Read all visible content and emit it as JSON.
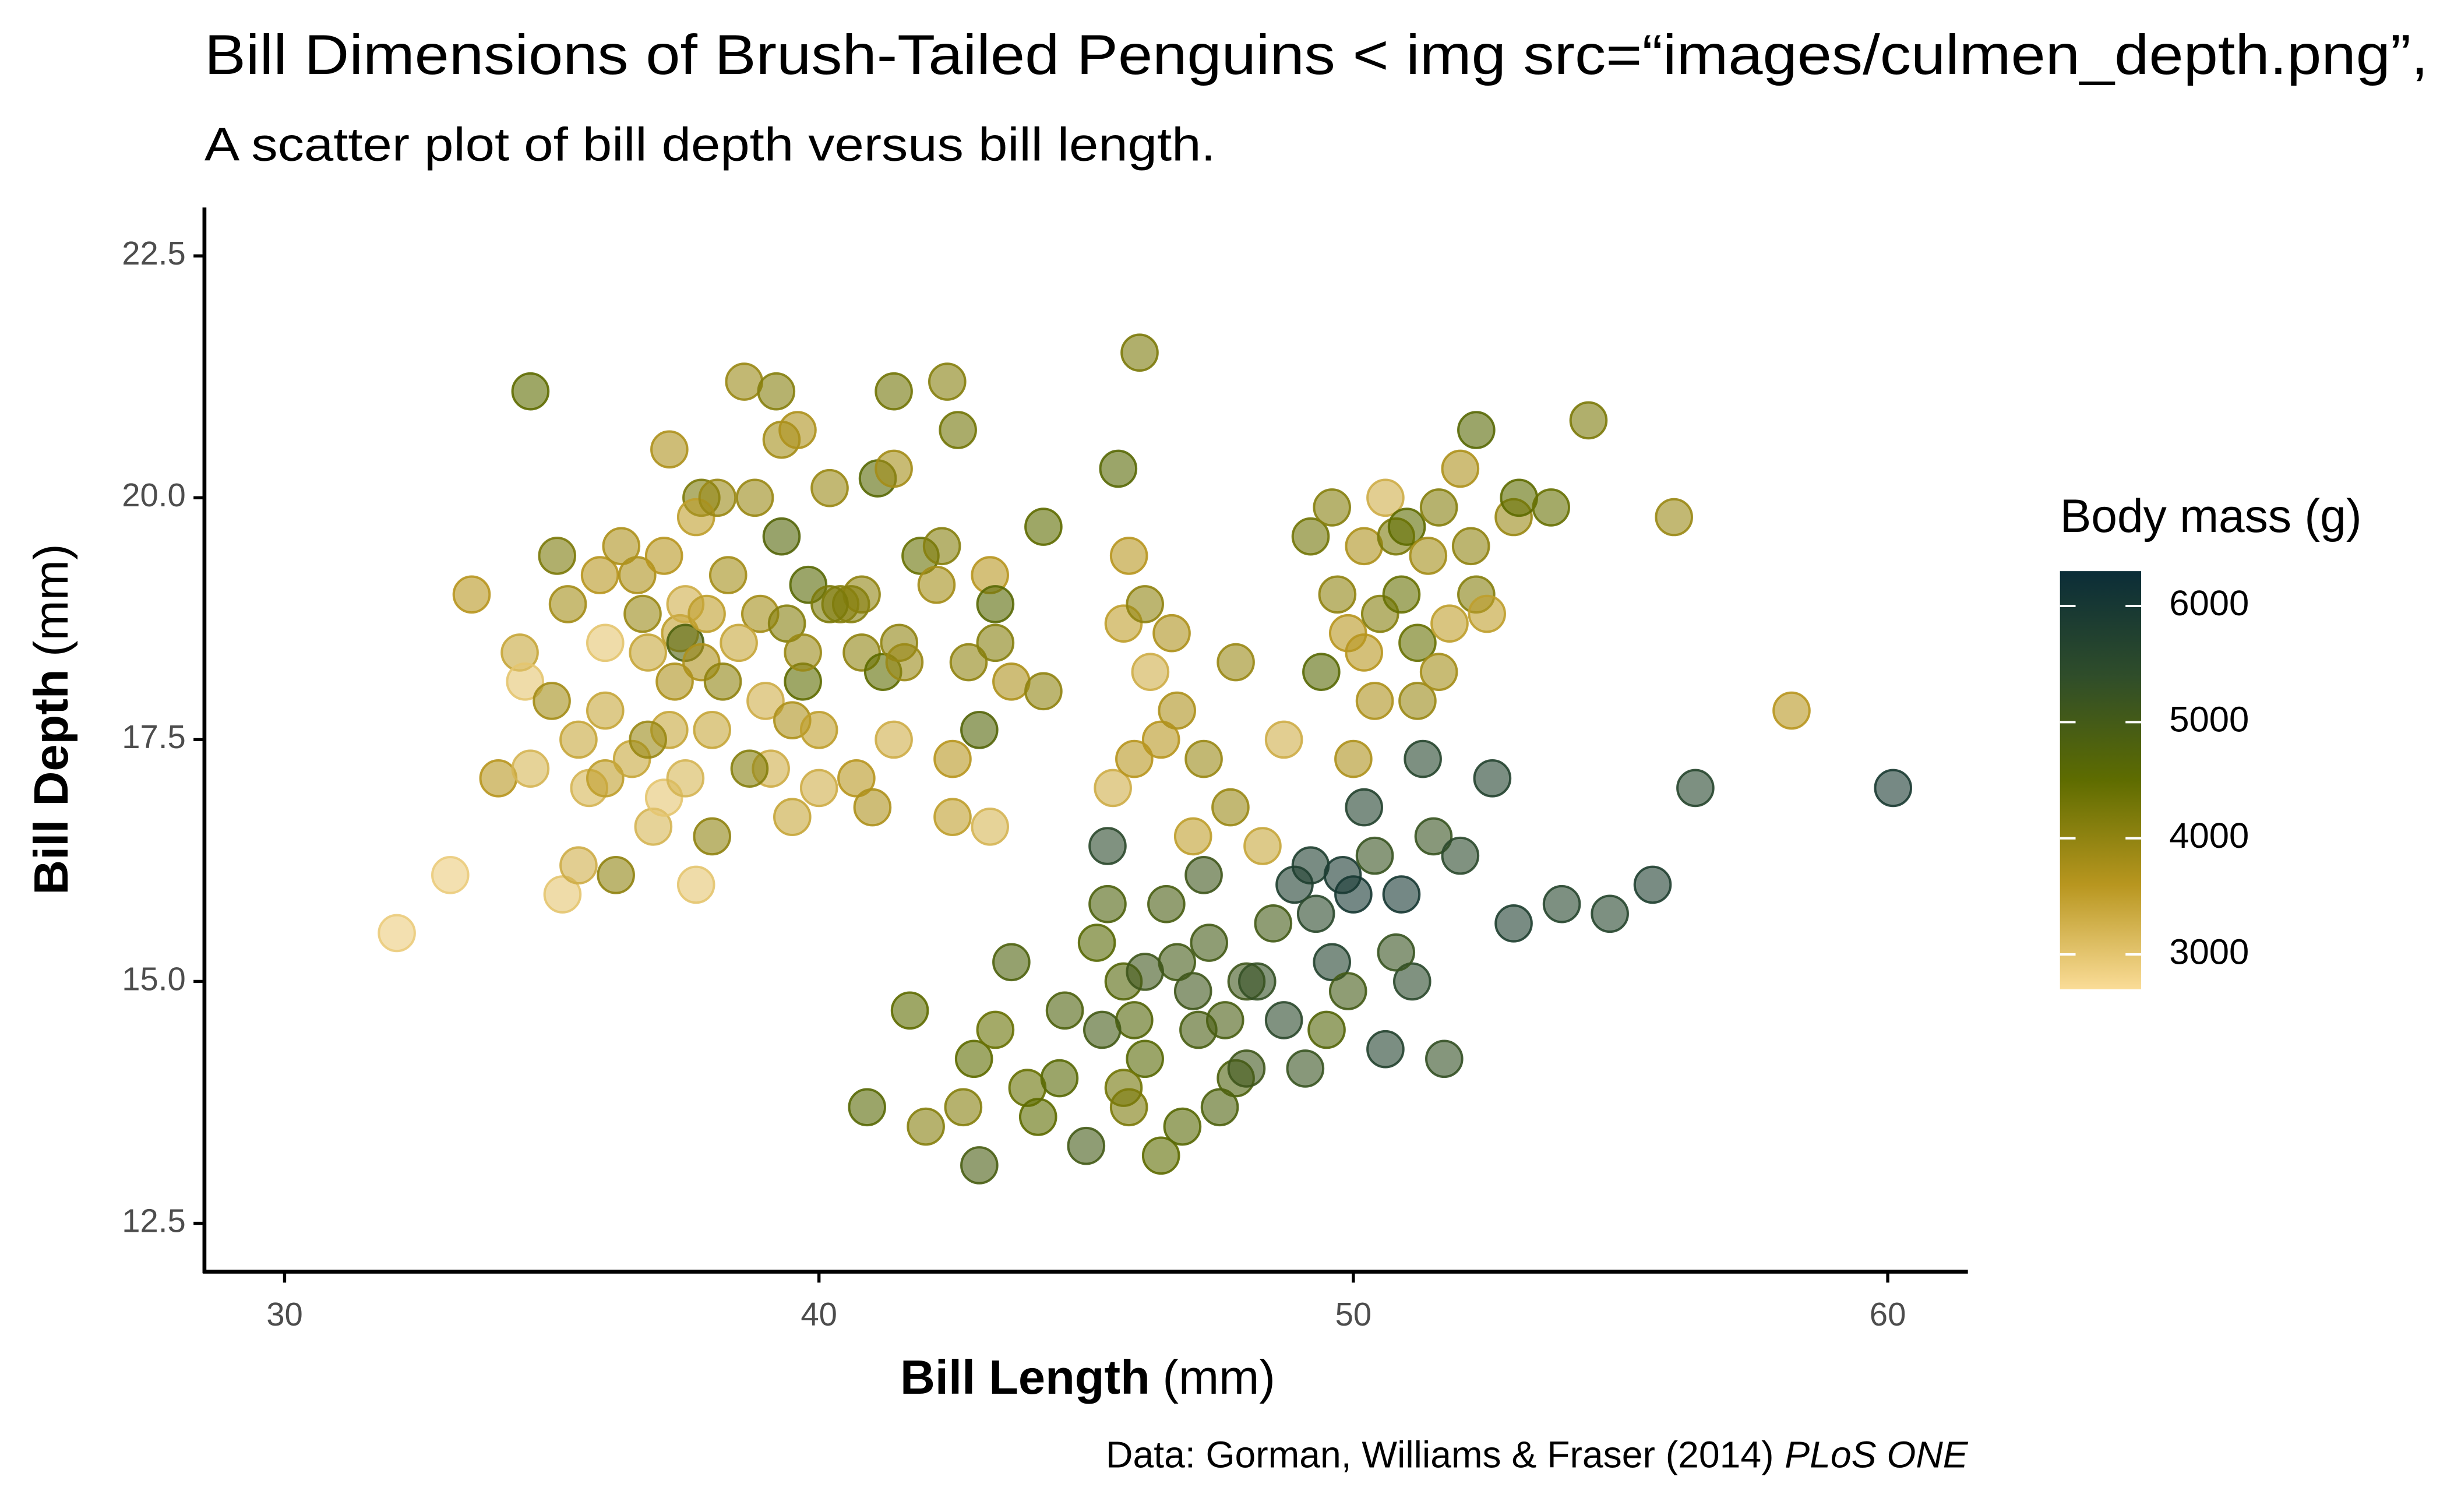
{
  "chart_data": {
    "type": "scatter",
    "title": "Bill Dimensions of Brush-Tailed Penguins < img src=“images/culmen_depth.png”,",
    "subtitle": "A scatter plot of bill depth versus bill length.",
    "x_label": "Bill Length",
    "x_label_unit": "(mm)",
    "y_label": "Bill Depth",
    "y_label_unit": "(mm)",
    "caption": "Data: Gorman, Williams & Fraser (2014)",
    "caption_italic": "PLoS ONE",
    "color_label": "Body mass (g)",
    "xlim": [
      28.5,
      61.5
    ],
    "xticks": [
      30,
      40,
      50,
      60
    ],
    "ylim": [
      12.0,
      23.0
    ],
    "yticks": [
      12.5,
      {
        "value": 15,
        "label": "15.0"
      },
      17.5,
      {
        "value": 20,
        "label": "20.0"
      },
      22.5
    ],
    "clim": [
      2700,
      6300
    ],
    "cticks": [
      3000,
      4000,
      5000,
      6000
    ],
    "colors": [
      "#fadc97",
      "#b8961f",
      "#5e6c00",
      "#2f4d2a",
      "#0b2d38"
    ],
    "x": [
      34.6,
      32.1,
      33.1,
      33.5,
      34.0,
      34.4,
      34.5,
      34.6,
      35.0,
      35.1,
      35.2,
      35.3,
      35.5,
      35.5,
      35.7,
      35.9,
      36.0,
      36.0,
      36.0,
      36.2,
      36.3,
      36.5,
      36.6,
      36.7,
      36.8,
      36.9,
      37.1,
      37.1,
      37.2,
      37.3,
      37.4,
      37.5,
      37.5,
      37.7,
      37.5,
      37.8,
      37.7,
      37.8,
      38.0,
      38.1,
      38.2,
      38.3,
      38.0,
      38.6,
      38.8,
      38.9,
      39.0,
      39.1,
      39.2,
      39.3,
      39.3,
      39.4,
      39.5,
      39.5,
      39.6,
      39.7,
      39.8,
      39.7,
      40.0,
      40.2,
      40.4,
      40.7,
      40.8,
      41.1,
      41.2,
      41.4,
      41.4,
      41.5,
      41.6,
      41.9,
      42.2,
      42.3,
      42.4,
      42.6,
      42.8,
      43.2,
      43.3,
      43.3,
      43.6,
      44.2,
      44.2,
      43.0,
      42.5,
      42.5,
      43.2,
      40.8,
      41.4,
      41.0,
      40.6,
      40.2,
      40.0,
      38.7,
      38.5,
      37.9,
      37.2,
      36.8,
      46.0,
      45.6,
      40.9,
      41.7,
      42.0,
      42.7,
      42.9,
      43.0,
      43.3,
      43.6,
      43.9,
      44.1,
      44.6,
      45.0,
      45.2,
      45.4,
      45.4,
      45.7,
      45.9,
      46.1,
      46.4,
      46.5,
      46.7,
      46.8,
      47.0,
      47.2,
      47.3,
      47.5,
      47.6,
      47.8,
      48.0,
      48.2,
      48.5,
      48.7,
      48.9,
      49.1,
      49.2,
      49.3,
      49.5,
      49.6,
      49.8,
      50.0,
      50.2,
      50.4,
      50.6,
      50.9,
      51.1,
      51.3,
      51.5,
      51.7,
      52.0,
      52.6,
      53.0,
      53.9,
      54.8,
      55.6,
      56.4,
      60.1,
      46.1,
      45.3,
      45.7,
      45.8,
      48.0,
      50.8,
      49.9,
      47.1,
      44.5,
      45.5,
      45.7,
      45.8,
      45.9,
      46.1,
      46.2,
      46.4,
      46.6,
      46.7,
      47.0,
      47.2,
      47.7,
      47.8,
      48.3,
      48.7,
      49.2,
      49.4,
      49.6,
      49.7,
      49.9,
      50.0,
      50.2,
      50.4,
      50.5,
      50.6,
      50.8,
      51.0,
      51.2,
      51.2,
      51.4,
      51.6,
      51.6,
      51.8,
      52.0,
      52.2,
      52.3,
      52.3,
      52.5,
      53.0,
      53.1,
      53.7,
      54.4,
      56.0,
      58.2,
      50.2,
      50.9
    ],
    "values": [
      21.1,
      15.5,
      16.1,
      19.0,
      17.1,
      18.4,
      18.1,
      17.2,
      17.9,
      19.4,
      15.9,
      18.9,
      16.2,
      17.5,
      17.0,
      19.2,
      18.5,
      17.1,
      17.8,
      16.1,
      19.5,
      17.3,
      19.2,
      18.8,
      18.4,
      16.6,
      16.9,
      19.4,
      20.5,
      18.1,
      18.6,
      17.1,
      18.9,
      16.0,
      18.5,
      20.0,
      19.8,
      18.3,
      16.5,
      20.0,
      18.1,
      19.2,
      17.6,
      21.2,
      20.0,
      18.8,
      17.9,
      17.2,
      21.1,
      20.6,
      19.6,
      18.7,
      17.7,
      16.7,
      20.7,
      18.1,
      19.1,
      18.4,
      17.0,
      20.1,
      18.9,
      17.1,
      18.4,
      20.2,
      18.2,
      21.1,
      20.3,
      18.5,
      18.3,
      19.4,
      19.1,
      19.5,
      21.2,
      20.7,
      18.3,
      19.2,
      18.9,
      18.5,
      18.1,
      19.7,
      18.0,
      17.6,
      17.3,
      16.7,
      16.6,
      19.0,
      17.5,
      16.8,
      18.9,
      18.9,
      17.6,
      17.2,
      18.5,
      18.8,
      17.6,
      17.5,
      21.5,
      20.3,
      13.7,
      14.7,
      13.5,
      13.7,
      14.2,
      13.1,
      14.5,
      15.2,
      13.9,
      13.6,
      14.7,
      13.3,
      15.4,
      15.8,
      16.4,
      15.0,
      14.6,
      14.2,
      13.2,
      15.8,
      15.2,
      13.5,
      14.9,
      16.1,
      15.4,
      13.7,
      14.6,
      14.0,
      15.0,
      15.0,
      15.6,
      14.6,
      16.0,
      14.1,
      16.2,
      15.7,
      14.5,
      15.2,
      16.1,
      15.9,
      16.8,
      16.3,
      14.3,
      15.9,
      15.0,
      17.3,
      16.5,
      14.2,
      16.3,
      17.1,
      15.6,
      15.8,
      15.7,
      16.0,
      17.0,
      17.0,
      15.1,
      14.5,
      13.9,
      13.7,
      14.1,
      15.3,
      14.9,
      14.5,
      14.0,
      17.0,
      18.7,
      19.4,
      17.3,
      18.9,
      18.2,
      17.5,
      18.6,
      17.8,
      16.5,
      17.3,
      16.8,
      18.3,
      16.4,
      17.5,
      19.6,
      18.2,
      19.9,
      19.0,
      18.6,
      17.3,
      19.5,
      17.9,
      18.8,
      20.0,
      19.6,
      19.7,
      18.5,
      17.9,
      19.4,
      18.2,
      19.9,
      18.7,
      20.3,
      19.5,
      19.0,
      20.7,
      18.8,
      19.8,
      20.0,
      19.9,
      20.8,
      19.8,
      17.8,
      18.4,
      19.0
    ],
    "color_values": [
      4500,
      2900,
      2900,
      3600,
      3600,
      3400,
      3000,
      3200,
      3800,
      4200,
      3000,
      3800,
      3300,
      3400,
      3200,
      3600,
      3000,
      3500,
      3400,
      4000,
      3700,
      3400,
      3700,
      3900,
      3400,
      3200,
      3000,
      3600,
      3700,
      3700,
      3500,
      3200,
      3300,
      3000,
      4800,
      4200,
      3500,
      3700,
      4000,
      3900,
      4000,
      3800,
      3400,
      3900,
      3900,
      3800,
      3300,
      3300,
      4100,
      3800,
      4700,
      4100,
      3700,
      3400,
      3700,
      4500,
      4600,
      3900,
      3300,
      3900,
      4100,
      3600,
      4000,
      4600,
      4500,
      4300,
      3800,
      4000,
      3900,
      4400,
      3800,
      4100,
      4100,
      4300,
      4000,
      3600,
      4600,
      4100,
      3700,
      4500,
      4000,
      4700,
      3600,
      3500,
      3200,
      4000,
      3300,
      3700,
      4100,
      4200,
      3500,
      4100,
      3400,
      3500,
      3400,
      3900,
      4200,
      4600,
      4600,
      4500,
      4100,
      4100,
      4500,
      4900,
      4400,
      4800,
      4400,
      4500,
      4800,
      5000,
      4600,
      4800,
      5500,
      4700,
      4700,
      4600,
      4500,
      4900,
      5000,
      4600,
      5100,
      5100,
      5000,
      4800,
      4900,
      4800,
      5100,
      5300,
      5000,
      5500,
      5800,
      5200,
      5800,
      5500,
      4700,
      5700,
      5900,
      6000,
      5700,
      5200,
      5700,
      6000,
      5500,
      5600,
      5200,
      5300,
      5500,
      5700,
      5800,
      5600,
      5600,
      5800,
      5600,
      5900,
      5100,
      5000,
      4300,
      4200,
      5100,
      5200,
      5000,
      4900,
      4600,
      3300,
      3500,
      3600,
      3600,
      4000,
      3300,
      3600,
      3700,
      3700,
      3500,
      3900,
      3900,
      3900,
      3400,
      3300,
      4300,
      4600,
      4100,
      4000,
      3600,
      3700,
      3700,
      3700,
      4100,
      3300,
      4200,
      4500,
      4400,
      3900,
      3800,
      3800,
      4100,
      3500,
      3700,
      4000,
      4100,
      4600,
      3500,
      3900,
      4500,
      4400,
      4200,
      3900,
      3600,
      3600,
      4400
    ]
  }
}
